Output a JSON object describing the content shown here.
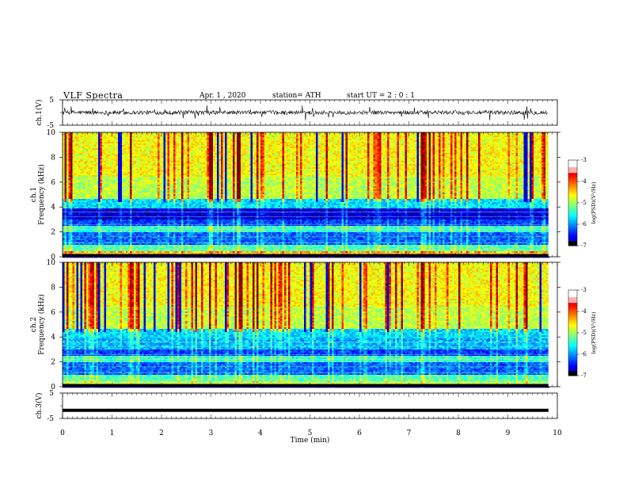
{
  "header": {
    "title": "VLF Spectra",
    "date": "Apr. 1 , 2020",
    "station": "station= ATH",
    "start": "start UT = 2 : 0 : 1"
  },
  "chart_data": [
    {
      "type": "line",
      "name": "ch1-waveform",
      "ylabel": "ch.1(V)",
      "ylim": [
        -5,
        5
      ],
      "yticks": [
        "5",
        "-5"
      ],
      "x_range_min": [
        0,
        9.8
      ]
    },
    {
      "type": "heatmap",
      "name": "ch1-spectrogram",
      "ylabel": "ch.1\nFrequency (kHz)",
      "ylim": [
        0,
        10
      ],
      "yticks": [
        "0",
        "2",
        "4",
        "6",
        "8",
        "10"
      ],
      "colorbar": {
        "label": "log(PSD)(V²/Hz)",
        "ticks": [
          "-3",
          "-4",
          "-5",
          "-6",
          "-7"
        ],
        "range": [
          -7,
          -3
        ]
      }
    },
    {
      "type": "heatmap",
      "name": "ch2-spectrogram",
      "ylabel": "ch.2\nFrequency (kHz)",
      "ylim": [
        0,
        10
      ],
      "yticks": [
        "0",
        "2",
        "4",
        "6",
        "8",
        "10"
      ],
      "colorbar": {
        "label": "log(PSD)(V²/Hz)",
        "ticks": [
          "-3",
          "-4",
          "-5",
          "-6",
          "-7"
        ],
        "range": [
          -7,
          -3
        ]
      }
    },
    {
      "type": "line",
      "name": "ch3-waveform",
      "ylabel": "ch.3(V)",
      "ylim": [
        -5,
        5
      ],
      "yticks": [
        "5",
        "-5"
      ],
      "constant_value": -1.8
    }
  ],
  "xaxis": {
    "label": "Time (min)",
    "ticks": [
      "0",
      "1",
      "2",
      "3",
      "4",
      "5",
      "6",
      "7",
      "8",
      "9",
      "10"
    ],
    "range": [
      0,
      10
    ]
  }
}
